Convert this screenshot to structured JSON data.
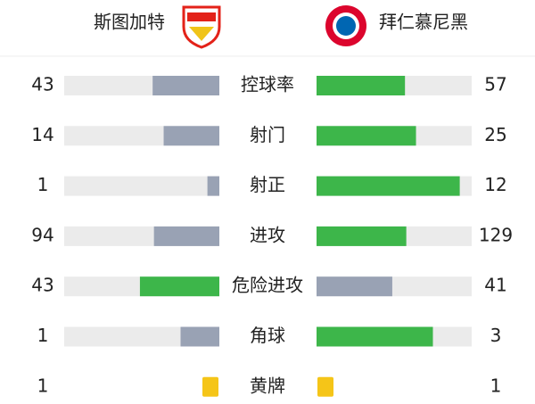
{
  "header": {
    "home_team": "斯图加特",
    "away_team": "拜仁慕尼黑"
  },
  "colors": {
    "leader": "#3db64a",
    "trailer": "#99a2b4",
    "track": "#ebebeb"
  },
  "stats": [
    {
      "label": "控球率",
      "home": 43,
      "away": 57
    },
    {
      "label": "射门",
      "home": 14,
      "away": 25
    },
    {
      "label": "射正",
      "home": 1,
      "away": 12
    },
    {
      "label": "进攻",
      "home": 94,
      "away": 129
    },
    {
      "label": "危险进攻",
      "home": 43,
      "away": 41
    },
    {
      "label": "角球",
      "home": 1,
      "away": 3
    },
    {
      "label": "黄牌",
      "home": 1,
      "away": 1,
      "card_color": "#f5c518"
    }
  ]
}
